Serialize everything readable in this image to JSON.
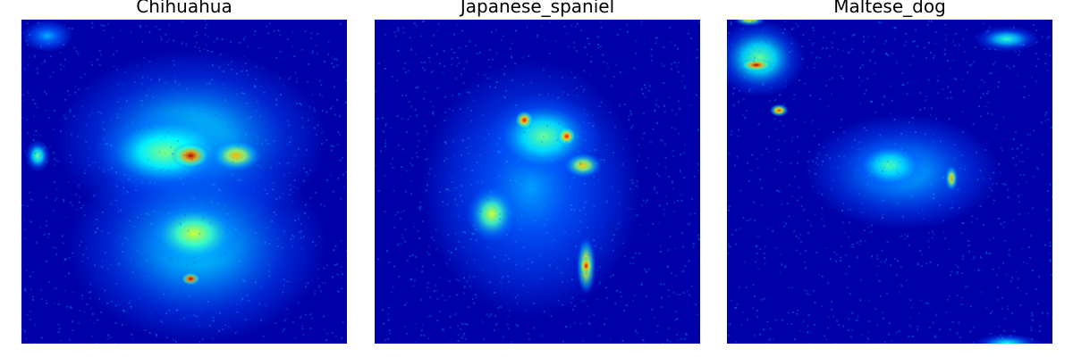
{
  "chart_data": [
    {
      "type": "heatmap",
      "title": "Chihuahua",
      "colormap": "jet",
      "background_color": "#0000a8",
      "hotspots": [
        {
          "label": "upper body",
          "cx": 0.52,
          "cy": 0.37,
          "rx": 0.42,
          "ry": 0.28,
          "intensity": 0.38
        },
        {
          "label": "lower body",
          "cx": 0.54,
          "cy": 0.7,
          "rx": 0.4,
          "ry": 0.3,
          "intensity": 0.36
        },
        {
          "label": "head",
          "cx": 0.44,
          "cy": 0.41,
          "rx": 0.22,
          "ry": 0.13,
          "intensity": 0.5
        },
        {
          "label": "head peak",
          "cx": 0.52,
          "cy": 0.42,
          "rx": 0.06,
          "ry": 0.04,
          "intensity": 0.95
        },
        {
          "label": "ear",
          "cx": 0.66,
          "cy": 0.42,
          "rx": 0.08,
          "ry": 0.05,
          "intensity": 0.7
        },
        {
          "label": "chest",
          "cx": 0.53,
          "cy": 0.66,
          "rx": 0.15,
          "ry": 0.1,
          "intensity": 0.58
        },
        {
          "label": "paw peak",
          "cx": 0.52,
          "cy": 0.8,
          "rx": 0.03,
          "ry": 0.02,
          "intensity": 0.98
        },
        {
          "label": "left spot",
          "cx": 0.05,
          "cy": 0.42,
          "rx": 0.04,
          "ry": 0.05,
          "intensity": 0.48
        },
        {
          "label": "top-left",
          "cx": 0.08,
          "cy": 0.05,
          "rx": 0.08,
          "ry": 0.05,
          "intensity": 0.3
        }
      ]
    },
    {
      "type": "heatmap",
      "title": "Japanese_spaniel",
      "colormap": "jet",
      "background_color": "#0000a8",
      "hotspots": [
        {
          "label": "body",
          "cx": 0.48,
          "cy": 0.52,
          "rx": 0.34,
          "ry": 0.4,
          "intensity": 0.28
        },
        {
          "label": "head",
          "cx": 0.52,
          "cy": 0.36,
          "rx": 0.18,
          "ry": 0.13,
          "intensity": 0.48
        },
        {
          "label": "eye",
          "cx": 0.46,
          "cy": 0.31,
          "rx": 0.03,
          "ry": 0.03,
          "intensity": 0.88
        },
        {
          "label": "nose",
          "cx": 0.59,
          "cy": 0.36,
          "rx": 0.03,
          "ry": 0.03,
          "intensity": 0.88
        },
        {
          "label": "ear",
          "cx": 0.64,
          "cy": 0.45,
          "rx": 0.06,
          "ry": 0.04,
          "intensity": 0.68
        },
        {
          "label": "left",
          "cx": 0.36,
          "cy": 0.6,
          "rx": 0.08,
          "ry": 0.09,
          "intensity": 0.58
        },
        {
          "label": "leg",
          "cx": 0.65,
          "cy": 0.76,
          "rx": 0.03,
          "ry": 0.09,
          "intensity": 0.75
        },
        {
          "label": "leg peak",
          "cx": 0.65,
          "cy": 0.76,
          "rx": 0.02,
          "ry": 0.03,
          "intensity": 0.92
        }
      ]
    },
    {
      "type": "heatmap",
      "title": "Maltese_dog",
      "colormap": "jet",
      "background_color": "#0000a8",
      "hotspots": [
        {
          "label": "top-left",
          "cx": 0.1,
          "cy": 0.12,
          "rx": 0.14,
          "ry": 0.12,
          "intensity": 0.48
        },
        {
          "label": "top-left peak",
          "cx": 0.09,
          "cy": 0.14,
          "rx": 0.05,
          "ry": 0.02,
          "intensity": 0.95
        },
        {
          "label": "top edge",
          "cx": 0.07,
          "cy": 0.0,
          "rx": 0.05,
          "ry": 0.02,
          "intensity": 0.68
        },
        {
          "label": "streak",
          "cx": 0.16,
          "cy": 0.28,
          "rx": 0.03,
          "ry": 0.02,
          "intensity": 0.82
        },
        {
          "label": "top-right",
          "cx": 0.86,
          "cy": 0.06,
          "rx": 0.1,
          "ry": 0.04,
          "intensity": 0.42
        },
        {
          "label": "center",
          "cx": 0.54,
          "cy": 0.47,
          "rx": 0.3,
          "ry": 0.18,
          "intensity": 0.33
        },
        {
          "label": "center bright",
          "cx": 0.5,
          "cy": 0.45,
          "rx": 0.12,
          "ry": 0.08,
          "intensity": 0.45
        },
        {
          "label": "right spot",
          "cx": 0.69,
          "cy": 0.49,
          "rx": 0.02,
          "ry": 0.04,
          "intensity": 0.72
        },
        {
          "label": "bottom-right",
          "cx": 0.86,
          "cy": 1.0,
          "rx": 0.1,
          "ry": 0.03,
          "intensity": 0.4
        }
      ]
    }
  ]
}
